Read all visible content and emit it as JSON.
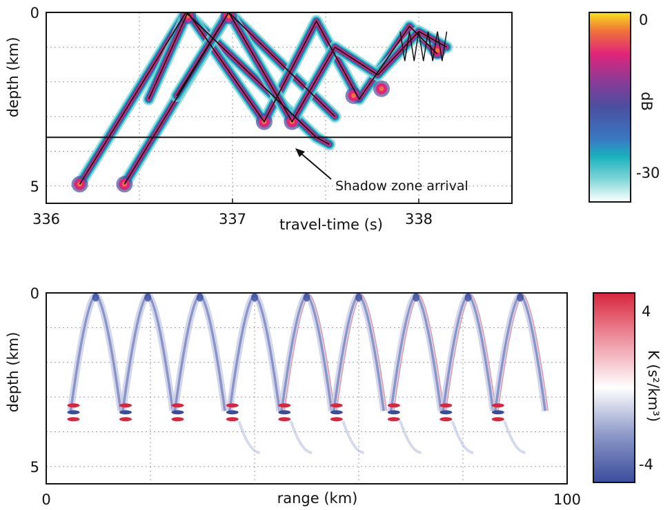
{
  "chart_data": [
    {
      "type": "heatmap",
      "xlabel": "travel-time (s)",
      "ylabel": "depth (km)",
      "x_ticks": [
        "336",
        "337",
        "338"
      ],
      "y_ticks": [
        "0",
        "5"
      ],
      "xlim": [
        336,
        338.5
      ],
      "ylim": [
        0,
        5.5
      ],
      "y_inverted": true,
      "grid": true,
      "colorbar": {
        "label": "dB",
        "ticks": [
          "0",
          "-30"
        ],
        "range": [
          -35,
          0
        ]
      },
      "horizontal_line_depth": 3.6,
      "annotation": {
        "text": "Shadow zone arrival",
        "x": 337.2,
        "y": 4.05
      },
      "ray_paths": [
        {
          "name": "branch_a",
          "points": [
            [
              336.18,
              4.95
            ],
            [
              336.75,
              0
            ],
            [
              337.45,
              3.6
            ],
            [
              337.52,
              3.8
            ]
          ]
        },
        {
          "name": "branch_b",
          "points": [
            [
              336.42,
              4.95
            ],
            [
              336.98,
              0
            ],
            [
              337.55,
              3.0
            ]
          ]
        },
        {
          "name": "branch_c",
          "points": [
            [
              336.55,
              2.5
            ],
            [
              336.76,
              0
            ],
            [
              337.17,
              3.15
            ],
            [
              337.45,
              0.25
            ],
            [
              337.68,
              2.5
            ],
            [
              337.95,
              0.4
            ],
            [
              338.1,
              1.2
            ]
          ]
        },
        {
          "name": "branch_d",
          "points": [
            [
              336.7,
              2.4
            ],
            [
              336.98,
              0
            ],
            [
              337.32,
              3.15
            ],
            [
              337.55,
              1.0
            ],
            [
              337.78,
              1.8
            ],
            [
              338.0,
              0.55
            ],
            [
              338.15,
              1.0
            ]
          ]
        }
      ],
      "hot_spots": [
        {
          "x": 336.18,
          "y": 4.95
        },
        {
          "x": 336.42,
          "y": 4.95
        },
        {
          "x": 336.76,
          "y": 0.1
        },
        {
          "x": 336.98,
          "y": 0.1
        },
        {
          "x": 337.17,
          "y": 3.15
        },
        {
          "x": 337.32,
          "y": 3.15
        },
        {
          "x": 337.65,
          "y": 2.4
        },
        {
          "x": 337.8,
          "y": 2.2
        },
        {
          "x": 338.1,
          "y": 1.1
        }
      ]
    },
    {
      "type": "heatmap",
      "xlabel": "range (km)",
      "ylabel": "depth (km)",
      "x_ticks": [
        "0",
        "100"
      ],
      "y_ticks": [
        "0",
        "5"
      ],
      "xlim": [
        0,
        100
      ],
      "ylim": [
        0,
        5.5
      ],
      "y_inverted": true,
      "grid": true,
      "colorbar": {
        "label": "K (s²/km³)",
        "ticks": [
          "4",
          "-4"
        ],
        "range": [
          -5,
          5
        ]
      },
      "turning_point_ranges": [
        9.5,
        19.5,
        29.5,
        40,
        50,
        60,
        71,
        81,
        91
      ],
      "upper_turning_depth": 0.05,
      "lower_turning_depth": 3.4
    }
  ]
}
